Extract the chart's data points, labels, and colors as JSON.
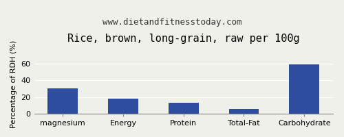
{
  "title": "Rice, brown, long-grain, raw per 100g",
  "subtitle": "www.dietandfitnesstoday.com",
  "categories": [
    "magnesium",
    "Energy",
    "Protein",
    "Total-Fat",
    "Carbohydrate"
  ],
  "values": [
    30,
    18,
    13,
    6,
    59
  ],
  "bar_color": "#2e4d9e",
  "ylabel": "Percentage of RDH (%)",
  "ylim": [
    0,
    70
  ],
  "yticks": [
    0,
    20,
    40,
    60
  ],
  "background_color": "#f0f0eb",
  "plot_bg_color": "#f0f0eb",
  "title_fontsize": 11,
  "subtitle_fontsize": 9,
  "ylabel_fontsize": 8,
  "tick_fontsize": 8
}
